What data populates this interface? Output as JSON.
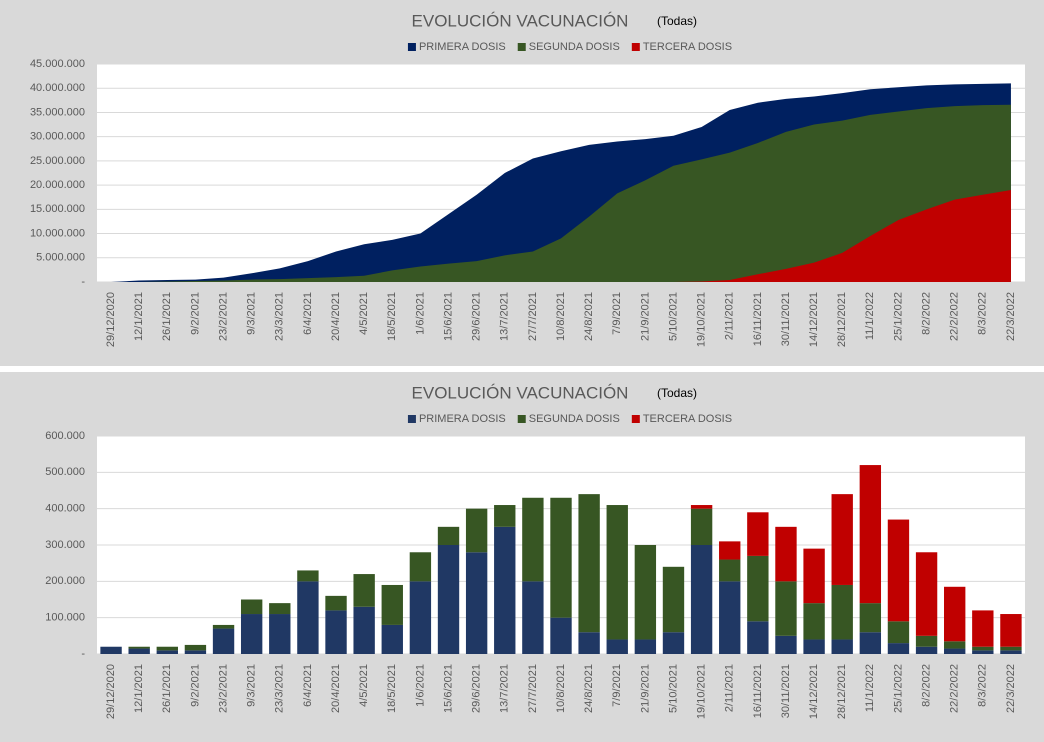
{
  "chart_data": [
    {
      "type": "area",
      "title": "EVOLUCIÓN VACUNACIÓN",
      "subtitle": "(Todas)",
      "categories": [
        "29/12/2020",
        "12/1/2021",
        "26/1/2021",
        "9/2/2021",
        "23/2/2021",
        "9/3/2021",
        "23/3/2021",
        "6/4/2021",
        "20/4/2021",
        "4/5/2021",
        "18/5/2021",
        "1/6/2021",
        "15/6/2021",
        "29/6/2021",
        "13/7/2021",
        "27/7/2021",
        "10/8/2021",
        "24/8/2021",
        "7/9/2021",
        "21/9/2021",
        "5/10/2021",
        "19/10/2021",
        "2/11/2021",
        "16/11/2021",
        "30/11/2021",
        "14/12/2021",
        "28/12/2021",
        "11/1/2022",
        "25/1/2022",
        "8/2/2022",
        "22/2/2022",
        "8/3/2022",
        "22/3/2022"
      ],
      "series": [
        {
          "name": "PRIMERA DOSIS",
          "color": "#002060",
          "values": [
            0,
            300000,
            400000,
            500000,
            900000,
            1800000,
            2800000,
            4300000,
            6300000,
            7800000,
            8700000,
            10000000,
            14000000,
            18000000,
            22500000,
            25500000,
            27000000,
            28300000,
            29000000,
            29500000,
            30200000,
            32000000,
            35500000,
            37000000,
            37800000,
            38300000,
            39000000,
            39800000,
            40200000,
            40600000,
            40800000,
            40900000,
            41000000
          ]
        },
        {
          "name": "SEGUNDA DOSIS",
          "color": "#375623",
          "values": [
            0,
            0,
            100000,
            200000,
            300000,
            500000,
            600000,
            800000,
            1000000,
            1300000,
            2400000,
            3200000,
            3800000,
            4300000,
            5500000,
            6300000,
            9000000,
            13500000,
            18300000,
            21000000,
            24000000,
            25300000,
            26700000,
            28700000,
            31000000,
            32500000,
            33300000,
            34500000,
            35200000,
            35900000,
            36300000,
            36500000,
            36600000
          ]
        },
        {
          "name": "TERCERA DOSIS",
          "color": "#c00000",
          "values": [
            0,
            0,
            0,
            0,
            0,
            0,
            0,
            0,
            0,
            0,
            0,
            0,
            0,
            0,
            0,
            0,
            0,
            0,
            0,
            0,
            0,
            100000,
            400000,
            1600000,
            2700000,
            4000000,
            6000000,
            9500000,
            12800000,
            15000000,
            17000000,
            18000000,
            19000000
          ]
        }
      ],
      "ylim": [
        0,
        45000000
      ],
      "yticks": [
        {
          "value": 0,
          "label": "-"
        },
        {
          "value": 5000000,
          "label": "5.000.000"
        },
        {
          "value": 10000000,
          "label": "10.000.000"
        },
        {
          "value": 15000000,
          "label": "15.000.000"
        },
        {
          "value": 20000000,
          "label": "20.000.000"
        },
        {
          "value": 25000000,
          "label": "25.000.000"
        },
        {
          "value": 30000000,
          "label": "30.000.000"
        },
        {
          "value": 35000000,
          "label": "35.000.000"
        },
        {
          "value": 40000000,
          "label": "40.000.000"
        },
        {
          "value": 45000000,
          "label": "45.000.000"
        }
      ],
      "grid": true,
      "legend": "top"
    },
    {
      "type": "bar",
      "stacked": true,
      "title": "EVOLUCIÓN VACUNACIÓN",
      "subtitle": "(Todas)",
      "categories": [
        "29/12/2020",
        "12/1/2021",
        "26/1/2021",
        "9/2/2021",
        "23/2/2021",
        "9/3/2021",
        "23/3/2021",
        "6/4/2021",
        "20/4/2021",
        "4/5/2021",
        "18/5/2021",
        "1/6/2021",
        "15/6/2021",
        "29/6/2021",
        "13/7/2021",
        "27/7/2021",
        "10/8/2021",
        "24/8/2021",
        "7/9/2021",
        "21/9/2021",
        "5/10/2021",
        "19/10/2021",
        "2/11/2021",
        "16/11/2021",
        "30/11/2021",
        "14/12/2021",
        "28/12/2021",
        "11/1/2022",
        "25/1/2022",
        "8/2/2022",
        "22/2/2022",
        "8/3/2022",
        "22/3/2022"
      ],
      "series": [
        {
          "name": "PRIMERA DOSIS",
          "color": "#203864",
          "values": [
            20000,
            15000,
            10000,
            10000,
            70000,
            110000,
            110000,
            200000,
            120000,
            130000,
            80000,
            200000,
            300000,
            280000,
            350000,
            200000,
            100000,
            60000,
            40000,
            40000,
            60000,
            300000,
            200000,
            90000,
            50000,
            40000,
            40000,
            60000,
            30000,
            20000,
            15000,
            10000,
            10000
          ]
        },
        {
          "name": "SEGUNDA DOSIS",
          "color": "#375623",
          "values": [
            0,
            5000,
            10000,
            15000,
            10000,
            40000,
            30000,
            30000,
            40000,
            90000,
            110000,
            80000,
            50000,
            120000,
            60000,
            230000,
            330000,
            380000,
            370000,
            260000,
            180000,
            100000,
            60000,
            180000,
            150000,
            100000,
            150000,
            80000,
            60000,
            30000,
            20000,
            10000,
            10000
          ]
        },
        {
          "name": "TERCERA DOSIS",
          "color": "#c00000",
          "values": [
            0,
            0,
            0,
            0,
            0,
            0,
            0,
            0,
            0,
            0,
            0,
            0,
            0,
            0,
            0,
            0,
            0,
            0,
            0,
            0,
            0,
            10000,
            50000,
            120000,
            150000,
            150000,
            250000,
            380000,
            280000,
            230000,
            150000,
            100000,
            90000
          ]
        }
      ],
      "ylim": [
        0,
        600000
      ],
      "yticks": [
        {
          "value": 0,
          "label": "-"
        },
        {
          "value": 100000,
          "label": "100.000"
        },
        {
          "value": 200000,
          "label": "200.000"
        },
        {
          "value": 300000,
          "label": "300.000"
        },
        {
          "value": 400000,
          "label": "400.000"
        },
        {
          "value": 500000,
          "label": "500.000"
        },
        {
          "value": 600000,
          "label": "600.000"
        }
      ],
      "grid": true,
      "legend": "top"
    }
  ]
}
